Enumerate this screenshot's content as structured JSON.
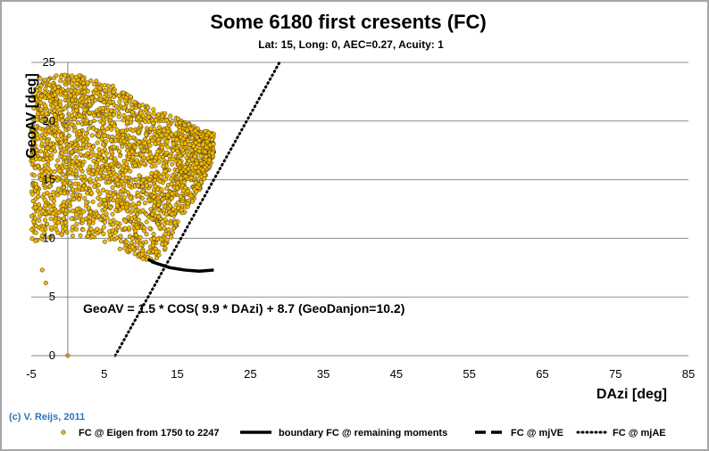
{
  "chart_data": {
    "type": "scatter",
    "title": "Some 6180 first cresents (FC)",
    "subtitle": "Lat: 15, Long: 0, AEC=0.27, Acuity: 1",
    "xlabel": "DAzi [deg]",
    "ylabel": "GeoAV [deg]",
    "xlim": [
      -5,
      85
    ],
    "ylim": [
      0,
      25
    ],
    "x_ticks": [
      -5,
      5,
      15,
      25,
      35,
      45,
      55,
      65,
      75,
      85
    ],
    "y_ticks": [
      0,
      5,
      10,
      15,
      20,
      25
    ],
    "grid": "horizontal",
    "annotation": "GeoAV = 1.5 * COS( 9.9 * DAzi) + 8.7 (GeoDanjon=10.2)",
    "credit": "(c) V. Reijs, 2011",
    "legend_position": "bottom",
    "series": [
      {
        "name": "FC @ Eigen from 1750 to 2247",
        "kind": "scatter",
        "color": "#f2b800",
        "count": 6180,
        "x_range": [
          -5,
          20
        ],
        "upper_edge": [
          [
            -5,
            23.6
          ],
          [
            -4,
            23.8
          ],
          [
            -2,
            23.9
          ],
          [
            0,
            24
          ],
          [
            2,
            23.9
          ],
          [
            4,
            23.6
          ],
          [
            6,
            23.1
          ],
          [
            8,
            22.3
          ],
          [
            10,
            21.6
          ],
          [
            12,
            20.9
          ],
          [
            14,
            20.5
          ],
          [
            16,
            20
          ],
          [
            18,
            19.3
          ],
          [
            20,
            19
          ]
        ],
        "lower_edge": [
          [
            -5,
            9.6
          ],
          [
            -4,
            9.8
          ],
          [
            -2,
            10.1
          ],
          [
            0,
            10.2
          ],
          [
            2,
            10.1
          ],
          [
            4,
            9.9
          ],
          [
            6,
            9.4
          ],
          [
            8,
            8.8
          ],
          [
            10,
            8.3
          ],
          [
            12,
            7.8
          ],
          [
            14,
            9.7
          ],
          [
            16,
            12
          ],
          [
            18,
            14
          ],
          [
            20,
            17
          ]
        ],
        "outliers": [
          [
            -4.5,
            16
          ],
          [
            -3.5,
            7.3
          ],
          [
            -3,
            6.2
          ],
          [
            0,
            0
          ]
        ]
      },
      {
        "name": "boundary FC @ remaining moments",
        "kind": "line",
        "color": "#000000",
        "x": [
          11,
          12,
          13,
          14,
          15,
          16,
          17,
          18,
          19,
          20
        ],
        "y": [
          8.2,
          7.9,
          7.7,
          7.5,
          7.4,
          7.3,
          7.25,
          7.2,
          7.25,
          7.3
        ]
      },
      {
        "name": "FC @ mjVE",
        "kind": "line",
        "color": "#000000",
        "x": [],
        "y": []
      },
      {
        "name": "FC @ mjAE",
        "kind": "line",
        "color": "#000000",
        "x": [
          6.5,
          29
        ],
        "y": [
          0,
          25
        ]
      }
    ]
  }
}
